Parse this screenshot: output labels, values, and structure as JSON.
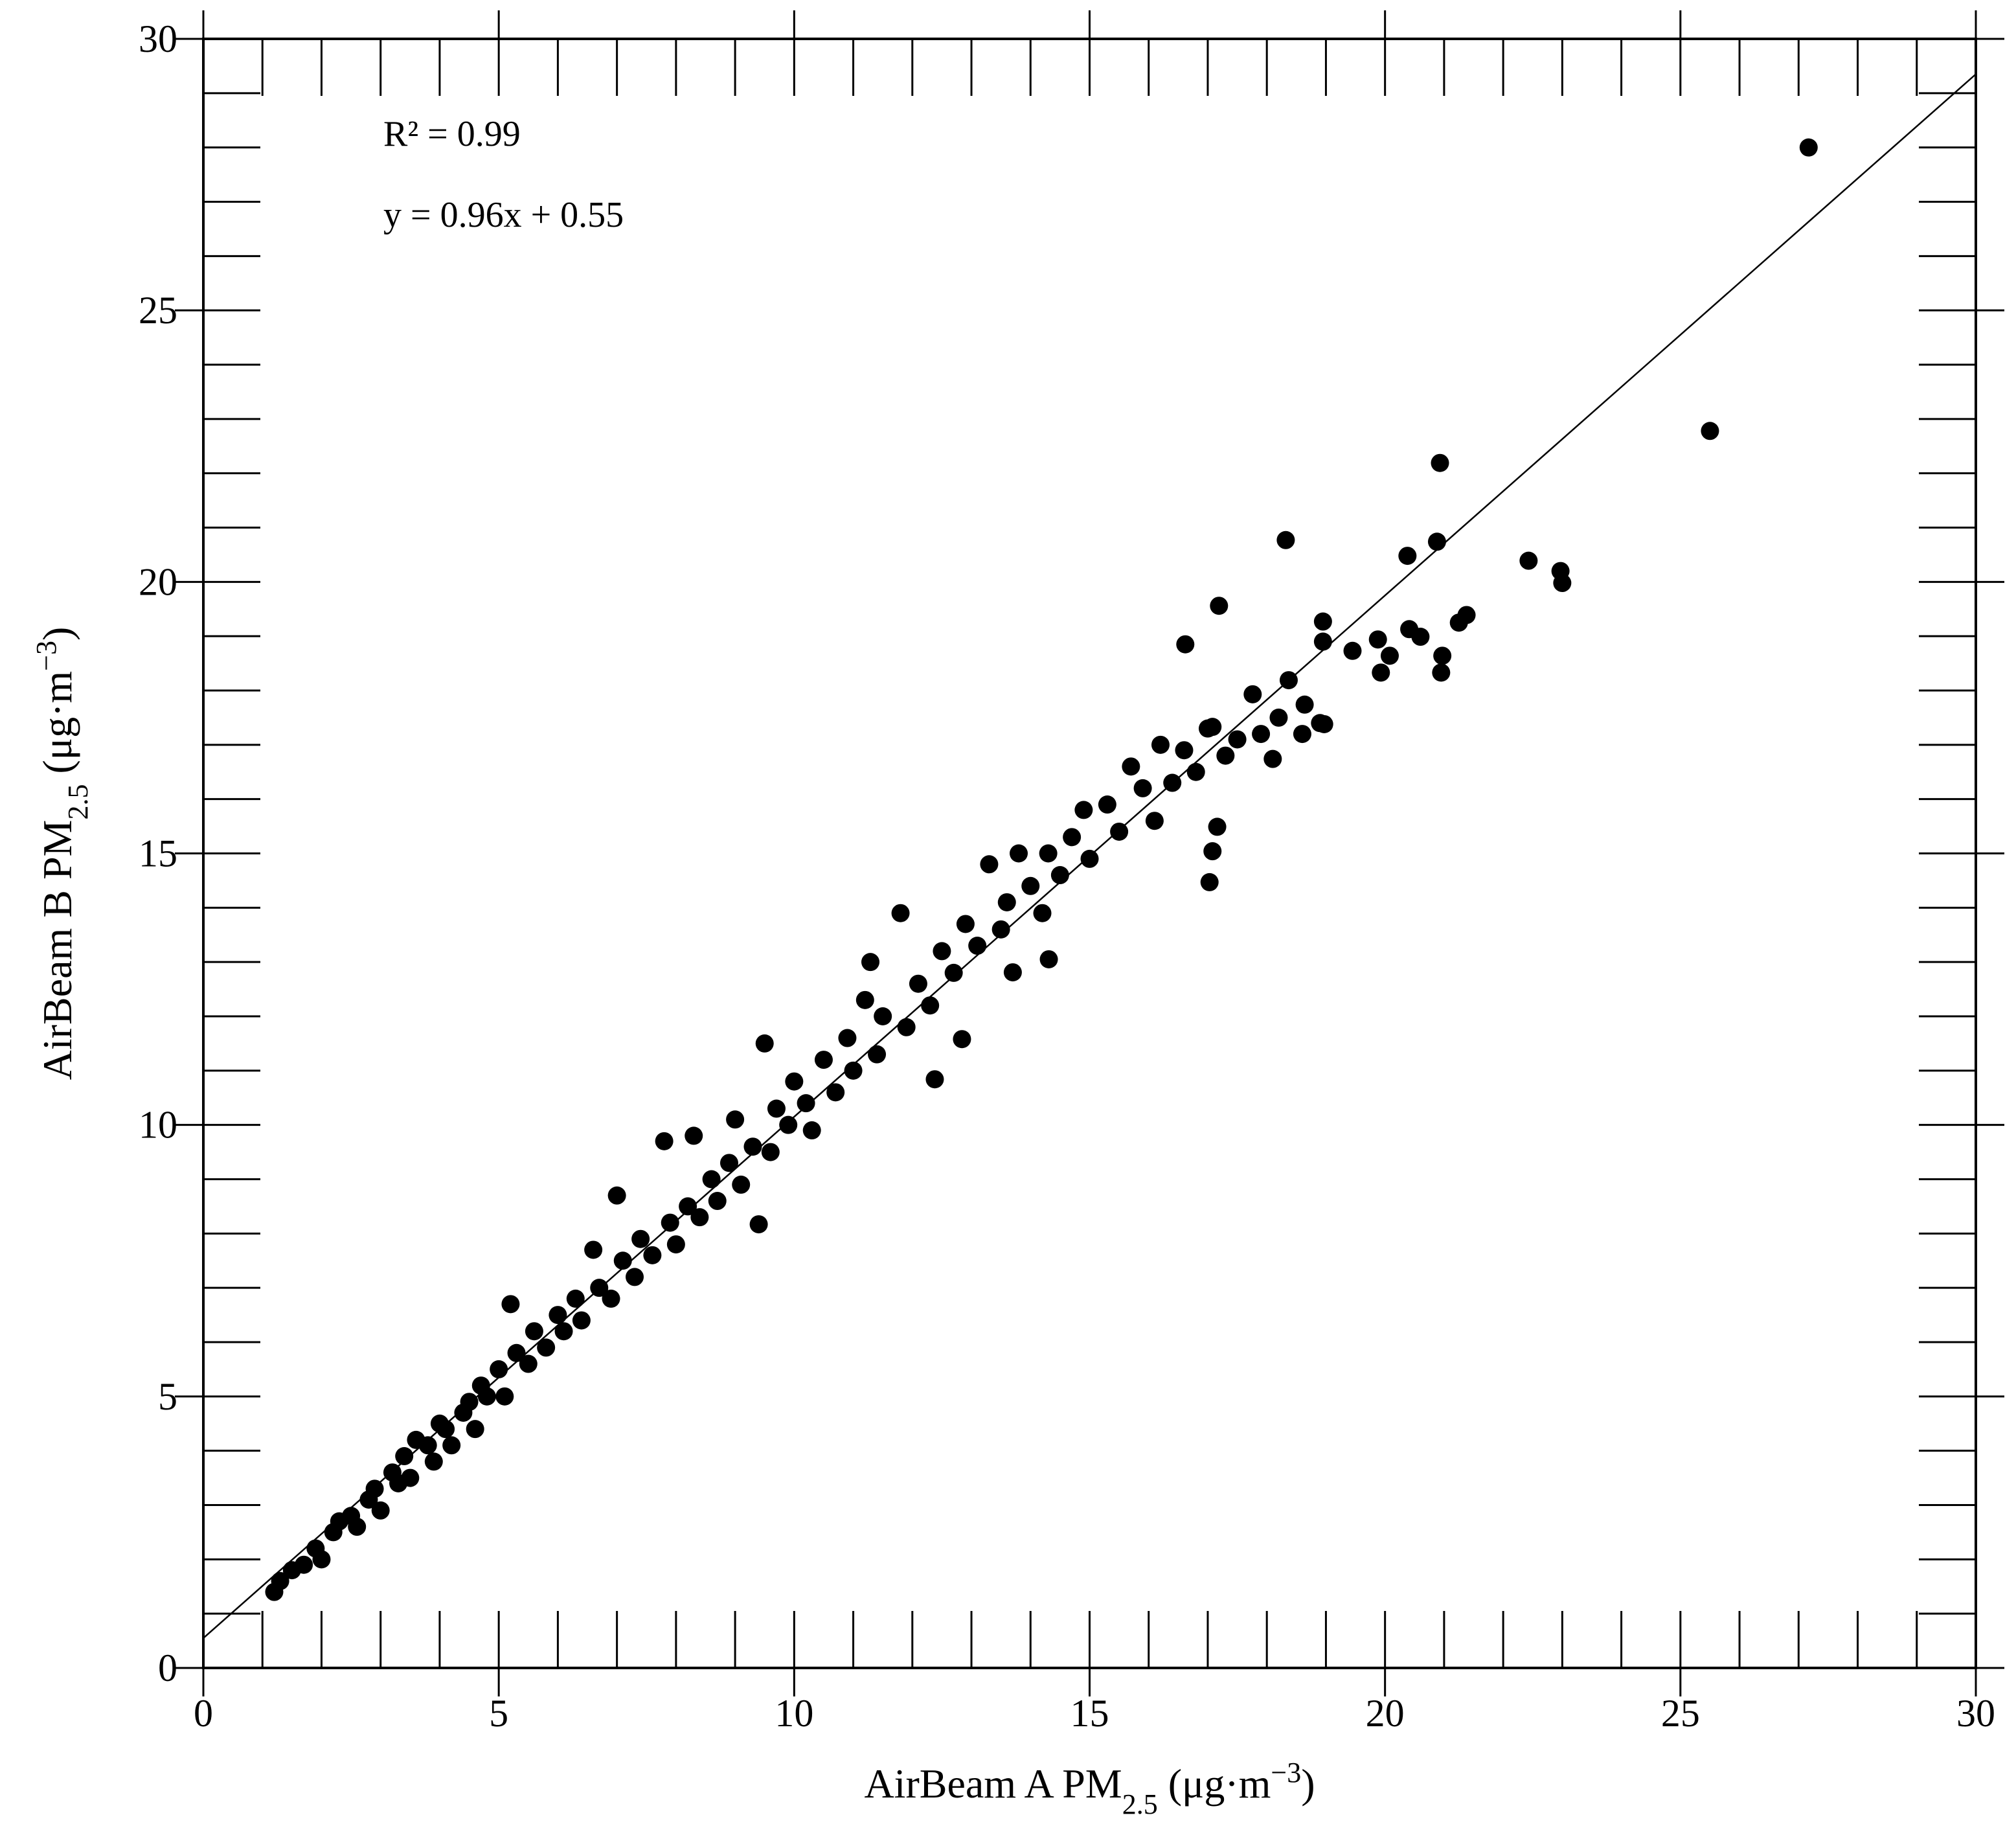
{
  "chart_data": {
    "type": "scatter",
    "xlabel": [
      "AirBeam A  PM",
      "2.5",
      " (μg·m",
      "−3",
      ")"
    ],
    "ylabel": [
      "AirBeam B  PM",
      "2.5",
      " (μg·m",
      "−3",
      ")"
    ],
    "annotations": [
      "R² = 0.99",
      "y = 0.96x + 0.55"
    ],
    "fit": {
      "slope": 0.96,
      "intercept": 0.55
    },
    "xlim": [
      0,
      30
    ],
    "ylim": [
      0,
      30
    ],
    "xticks": [
      0,
      5,
      10,
      15,
      20,
      25,
      30
    ],
    "yticks": [
      0,
      5,
      10,
      15,
      20,
      25,
      30
    ],
    "xminorticks": [
      1,
      2,
      3,
      4,
      6,
      7,
      8,
      9,
      11,
      12,
      13,
      14,
      16,
      17,
      18,
      19,
      21,
      22,
      23,
      24,
      26,
      27,
      28,
      29
    ],
    "yminorticks": [
      1,
      2,
      3,
      4,
      6,
      7,
      8,
      9,
      11,
      12,
      13,
      14,
      16,
      17,
      18,
      19,
      21,
      22,
      23,
      24,
      26,
      27,
      28,
      29
    ],
    "color": "#000000",
    "grid": false,
    "x": [
      1.2,
      1.3,
      1.5,
      1.7,
      1.9,
      2.0,
      2.2,
      2.3,
      2.5,
      2.6,
      2.8,
      2.9,
      3.0,
      3.2,
      3.3,
      3.4,
      3.5,
      3.6,
      3.8,
      3.9,
      4.0,
      4.1,
      4.2,
      4.4,
      4.5,
      4.6,
      4.7,
      4.8,
      5.0,
      5.1,
      5.2,
      5.3,
      5.5,
      5.6,
      5.8,
      6.0,
      6.1,
      6.3,
      6.4,
      6.6,
      6.7,
      6.9,
      7.0,
      7.1,
      7.3,
      7.4,
      7.6,
      7.8,
      7.9,
      8.0,
      8.2,
      8.3,
      8.4,
      8.6,
      8.7,
      8.9,
      9.0,
      9.1,
      9.3,
      9.5,
      9.6,
      9.7,
      9.9,
      10.0,
      10.2,
      10.3,
      10.5,
      10.7,
      10.9,
      11.0,
      11.2,
      11.4,
      11.5,
      11.8,
      11.9,
      12.1,
      12.3,
      12.5,
      12.7,
      12.9,
      13.1,
      13.3,
      13.5,
      13.6,
      13.8,
      14.0,
      14.2,
      14.3,
      14.5,
      14.7,
      14.9,
      15.0,
      15.3,
      15.5,
      15.7,
      15.9,
      16.1,
      16.2,
      16.4,
      16.6,
      16.8,
      17.0,
      17.3,
      17.5,
      17.9,
      18.2,
      18.6,
      18.9,
      27.17,
      25.5,
      20.93,
      18.32,
      20.88,
      20.38,
      22.43,
      22.97,
      23.0,
      17.19,
      16.62,
      18.95,
      18.95,
      20.41,
      20.6,
      19.88,
      19.45,
      20.97,
      20.08,
      19.93,
      20.95,
      21.38,
      21.25,
      17.03,
      17.08,
      17.16,
      9.4,
      12.38,
      18.37,
      17.76,
      18.1,
      18.97,
      18.64,
      11.29,
      12.84,
      13.7,
      14.31,
      17.08
    ],
    "y": [
      1.4,
      1.6,
      1.8,
      1.9,
      2.2,
      2.0,
      2.5,
      2.7,
      2.8,
      2.6,
      3.1,
      3.3,
      2.9,
      3.6,
      3.4,
      3.9,
      3.5,
      4.2,
      4.1,
      3.8,
      4.5,
      4.4,
      4.1,
      4.7,
      4.9,
      4.4,
      5.2,
      5.0,
      5.5,
      5.0,
      6.7,
      5.8,
      5.6,
      6.2,
      5.9,
      6.5,
      6.2,
      6.8,
      6.4,
      7.7,
      7.0,
      6.8,
      8.7,
      7.5,
      7.2,
      7.9,
      7.6,
      9.7,
      8.2,
      7.8,
      8.5,
      9.8,
      8.3,
      9.0,
      8.6,
      9.3,
      10.1,
      8.9,
      9.6,
      11.5,
      9.5,
      10.3,
      10.0,
      10.8,
      10.4,
      9.9,
      11.2,
      10.6,
      11.6,
      11.0,
      12.3,
      11.3,
      12.0,
      13.9,
      11.8,
      12.6,
      12.2,
      13.2,
      12.8,
      13.7,
      13.3,
      14.8,
      13.6,
      14.1,
      15.0,
      14.4,
      13.9,
      15.0,
      14.6,
      15.3,
      15.8,
      14.9,
      15.9,
      15.4,
      16.6,
      16.2,
      15.6,
      17.0,
      16.3,
      16.9,
      16.5,
      17.3,
      16.8,
      17.1,
      17.2,
      17.5,
      17.2,
      17.4,
      28.0,
      22.78,
      22.19,
      20.77,
      20.74,
      20.48,
      20.39,
      20.2,
      19.98,
      19.56,
      18.85,
      19.27,
      18.9,
      19.13,
      18.99,
      18.94,
      18.73,
      18.64,
      18.64,
      18.33,
      18.33,
      19.39,
      19.25,
      14.47,
      15.04,
      15.49,
      8.17,
      10.84,
      18.19,
      17.93,
      16.74,
      17.38,
      17.74,
      13.0,
      11.58,
      12.81,
      13.05,
      17.33
    ]
  }
}
